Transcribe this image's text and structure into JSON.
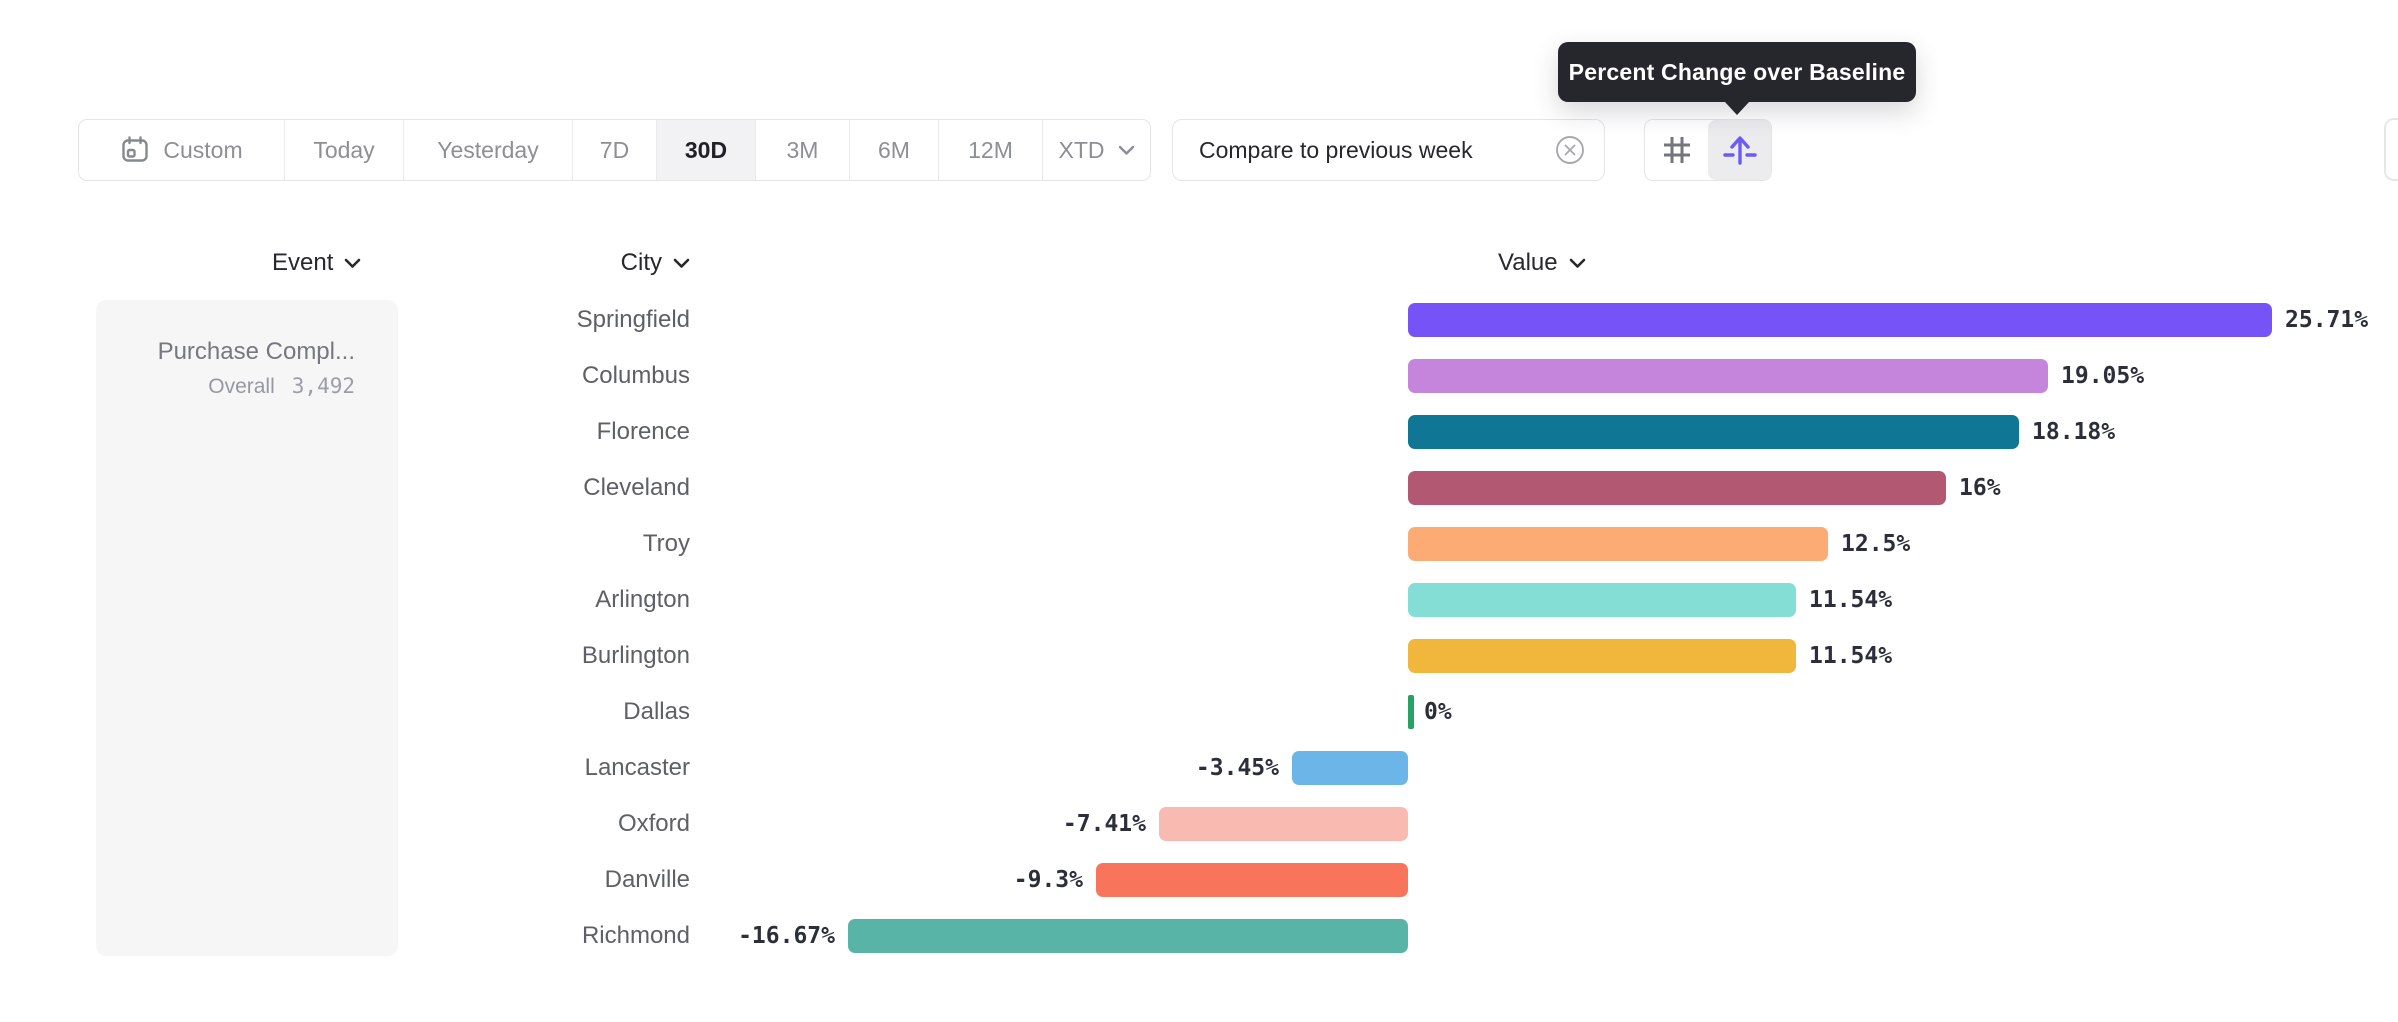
{
  "tooltip": {
    "text": "Percent Change over Baseline"
  },
  "toolbar": {
    "date_ranges": [
      {
        "label": "Custom",
        "icon": "calendar-icon",
        "selected": false
      },
      {
        "label": "Today",
        "selected": false
      },
      {
        "label": "Yesterday",
        "selected": false
      },
      {
        "label": "7D",
        "selected": false
      },
      {
        "label": "30D",
        "selected": true
      },
      {
        "label": "3M",
        "selected": false
      },
      {
        "label": "6M",
        "selected": false
      },
      {
        "label": "12M",
        "selected": false
      },
      {
        "label": "XTD",
        "selected": false,
        "icon": "chevron-down-icon"
      }
    ],
    "compare_chip": {
      "label": "Compare to previous week",
      "close_icon": "circled-x-icon"
    },
    "view_toggles": [
      {
        "name": "grid-view",
        "icon": "grid-icon",
        "selected": false
      },
      {
        "name": "baseline-view",
        "icon": "baseline-arrow-icon",
        "selected": true
      }
    ]
  },
  "table": {
    "columns": [
      {
        "label": "Event"
      },
      {
        "label": "City"
      },
      {
        "label": "Value"
      }
    ],
    "event_card": {
      "title": "Purchase Compl...",
      "overall_label": "Overall",
      "overall_value": "3,492"
    }
  },
  "chart_data": {
    "type": "bar",
    "orientation": "horizontal",
    "title": "Percent Change over Baseline",
    "categories": [
      "Springfield",
      "Columbus",
      "Florence",
      "Cleveland",
      "Troy",
      "Arlington",
      "Burlington",
      "Dallas",
      "Lancaster",
      "Oxford",
      "Danville",
      "Richmond"
    ],
    "values": [
      25.71,
      19.05,
      18.18,
      16,
      12.5,
      11.54,
      11.54,
      0,
      -3.45,
      -7.41,
      -9.3,
      -16.67
    ],
    "value_labels": [
      "25.71%",
      "19.05%",
      "18.18%",
      "16%",
      "12.5%",
      "11.54%",
      "11.54%",
      "0%",
      "-3.45%",
      "-7.41%",
      "-9.3%",
      "-16.67%"
    ],
    "bar_colors": [
      "#7553f6",
      "#c685dc",
      "#0f7795",
      "#b25872",
      "#fcab74",
      "#84ded5",
      "#f1b73d",
      "#27a262",
      "#6cb5e9",
      "#f9bab2",
      "#f8745a",
      "#59b4a8"
    ],
    "xlim": [
      -16.67,
      25.71
    ],
    "baseline": 0,
    "grid": false,
    "legend": false
  },
  "colors": {
    "accent_purple": "#6b5af5",
    "tooltip_bg": "#26272c",
    "value_label": "#2c2f3a",
    "zero_bar_green": "#27a262"
  }
}
